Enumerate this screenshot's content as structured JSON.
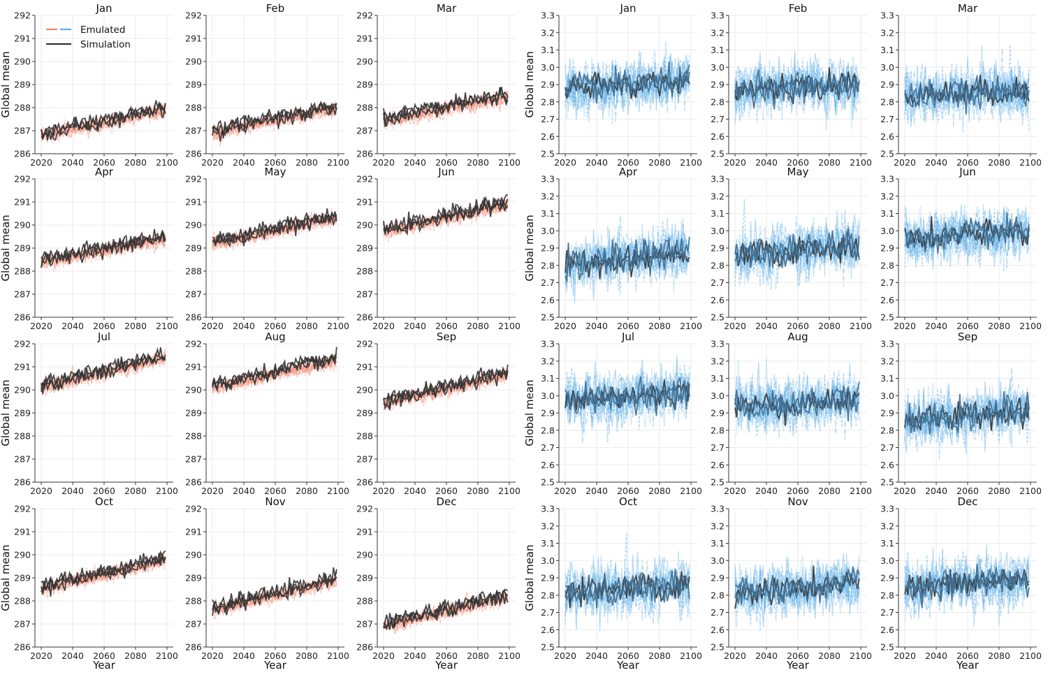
{
  "chart_data": {
    "type": "line",
    "layout": "4x6 small multiples (two groups of 3 columns)",
    "xlabel": "Year",
    "ylabel": "Global mean",
    "xticks": [
      2020,
      2040,
      2060,
      2080,
      2100
    ],
    "xlim": [
      2016,
      2104
    ],
    "grid": true,
    "legend": {
      "placement": "top-left of first panel",
      "entries": [
        "Emulated",
        "Simulation"
      ]
    },
    "colors": {
      "emulated_left": "#f4866c",
      "emulated_right": "#5aaee6",
      "simulation": "#333333",
      "simulation_right": "#3f6d8e"
    },
    "months": [
      "Jan",
      "Feb",
      "Mar",
      "Apr",
      "May",
      "Jun",
      "Jul",
      "Aug",
      "Sep",
      "Oct",
      "Nov",
      "Dec"
    ],
    "left_group": {
      "ylim": [
        286,
        292
      ],
      "yticks": [
        286,
        287,
        288,
        289,
        290,
        291,
        292
      ],
      "trend_2020": [
        286.9,
        287.0,
        287.5,
        288.5,
        289.3,
        289.8,
        290.2,
        290.2,
        289.5,
        288.6,
        287.7,
        287.0
      ],
      "trend_2100": [
        288.0,
        288.1,
        288.6,
        289.5,
        290.4,
        291.0,
        291.5,
        291.4,
        290.8,
        289.9,
        289.0,
        288.3
      ]
    },
    "right_group": {
      "ylim": [
        2.5,
        3.3
      ],
      "yticks": [
        "2.5",
        "2.6",
        "2.7",
        "2.8",
        "2.9",
        "3.0",
        "3.1",
        "3.2",
        "3.3"
      ],
      "trend_2020": [
        2.87,
        2.87,
        2.84,
        2.8,
        2.85,
        2.95,
        2.97,
        2.93,
        2.85,
        2.81,
        2.81,
        2.84
      ],
      "trend_2100": [
        2.93,
        2.9,
        2.86,
        2.88,
        2.92,
        3.0,
        3.02,
        2.98,
        2.92,
        2.86,
        2.87,
        2.9
      ]
    }
  }
}
